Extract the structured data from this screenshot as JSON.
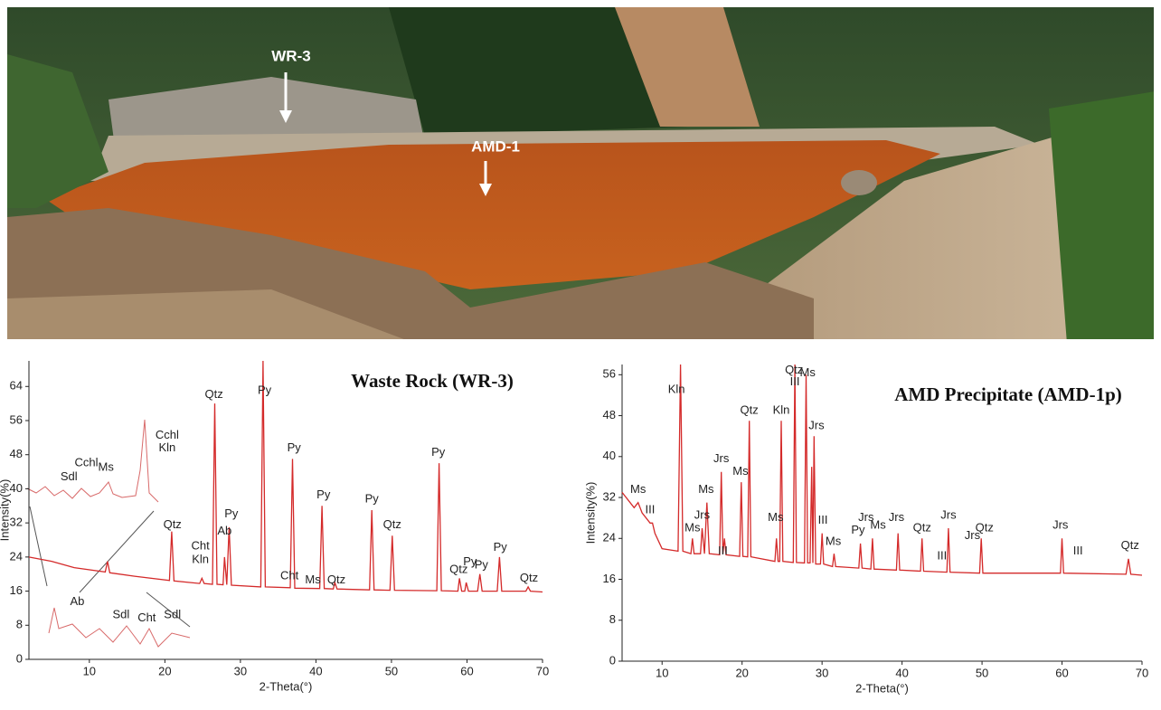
{
  "photo": {
    "labels": [
      "WR-3",
      "AMD-1"
    ]
  },
  "chart_data": [
    {
      "type": "line",
      "title": "Waste Rock (WR-3)",
      "x_label": "2-Theta(°)",
      "y_label": "Intensity(%)",
      "color": "#d42a2a",
      "xlim": [
        2,
        70
      ],
      "ylim": [
        0,
        70
      ],
      "xticks": [
        10,
        20,
        30,
        40,
        50,
        60,
        70
      ],
      "yticks": [
        0,
        8,
        16,
        24,
        32,
        40,
        48,
        56,
        64
      ],
      "x": [
        2,
        5,
        8,
        12.1,
        12.4,
        12.7,
        16,
        20.6,
        20.9,
        21.2,
        24.6,
        24.9,
        25.2,
        26.3,
        26.6,
        26.9,
        27.7,
        27.9,
        28.2,
        28.5,
        28.8,
        32.7,
        33.0,
        33.3,
        36.6,
        36.9,
        37.2,
        40.5,
        40.8,
        41.1,
        42.3,
        42.5,
        42.8,
        47.1,
        47.4,
        47.7,
        49.8,
        50.1,
        50.4,
        56.0,
        56.3,
        56.6,
        58.8,
        59.0,
        59.3,
        59.7,
        59.9,
        60.2,
        61.4,
        61.7,
        62.0,
        64.0,
        64.3,
        64.6,
        67.8,
        68.1,
        68.4,
        70
      ],
      "values": [
        24,
        23,
        21.5,
        20.5,
        23,
        20.3,
        19.5,
        18.5,
        30,
        18.4,
        17.8,
        19,
        17.8,
        17.6,
        60,
        17.6,
        17.5,
        24,
        17.5,
        31,
        17.4,
        17,
        70,
        17,
        16.8,
        47,
        16.7,
        16.6,
        36,
        16.6,
        16.5,
        18,
        16.5,
        16.3,
        35,
        16.3,
        16.2,
        29,
        16.2,
        16.1,
        46,
        16.1,
        16,
        19,
        16,
        16,
        18,
        16,
        16,
        20,
        16,
        16,
        24,
        16,
        16,
        17,
        16,
        15.8
      ],
      "annotations": [
        {
          "text": "Qtz",
          "x": 26.5,
          "y": 62
        },
        {
          "text": "Py",
          "x": 33.2,
          "y": 63
        },
        {
          "text": "Py",
          "x": 37.1,
          "y": 49.5
        },
        {
          "text": "Py",
          "x": 41,
          "y": 38.5
        },
        {
          "text": "Py",
          "x": 47.4,
          "y": 37.5
        },
        {
          "text": "Qtz",
          "x": 50.1,
          "y": 31.5
        },
        {
          "text": "Py",
          "x": 56.2,
          "y": 48.5
        },
        {
          "text": "Qtz",
          "x": 21,
          "y": 31.5
        },
        {
          "text": "Py",
          "x": 28.8,
          "y": 34
        },
        {
          "text": "Ab",
          "x": 27.9,
          "y": 30
        },
        {
          "text": "Cht",
          "x": 24.7,
          "y": 26.5
        },
        {
          "text": "Kln",
          "x": 24.7,
          "y": 23.3
        },
        {
          "text": "Cht",
          "x": 36.5,
          "y": 19.5
        },
        {
          "text": "Ms",
          "x": 39.6,
          "y": 18.5
        },
        {
          "text": "Qtz",
          "x": 42.7,
          "y": 18.5
        },
        {
          "text": "Qtz",
          "x": 58.9,
          "y": 21
        },
        {
          "text": "Py",
          "x": 60.4,
          "y": 22.8
        },
        {
          "text": "Py",
          "x": 61.9,
          "y": 22
        },
        {
          "text": "Py",
          "x": 64.4,
          "y": 26.2
        },
        {
          "text": "Qtz",
          "x": 68.2,
          "y": 19
        },
        {
          "text": "Cchl",
          "x": 20.3,
          "y": 52.5
        },
        {
          "text": "Kln",
          "x": 20.3,
          "y": 49.5
        },
        {
          "text": "Cchl",
          "x": 9.6,
          "y": 46
        },
        {
          "text": "Ms",
          "x": 12.2,
          "y": 45
        },
        {
          "text": "Sdl",
          "x": 7.3,
          "y": 42.7
        },
        {
          "text": "Ab",
          "x": 8.4,
          "y": 13.5
        },
        {
          "text": "Sdl",
          "x": 14.2,
          "y": 10.4
        },
        {
          "text": "Cht",
          "x": 17.6,
          "y": 9.6
        },
        {
          "text": "Sdl",
          "x": 21,
          "y": 10.4
        }
      ]
    },
    {
      "type": "line",
      "title": "AMD Precipitate (AMD-1p)",
      "x_label": "2-Theta(°)",
      "y_label": "Intensity(%)",
      "color": "#d42a2a",
      "xlim": [
        5,
        70
      ],
      "ylim": [
        0,
        58
      ],
      "xticks": [
        10,
        20,
        30,
        40,
        50,
        60,
        70
      ],
      "yticks": [
        0,
        8,
        16,
        24,
        32,
        40,
        48,
        56
      ],
      "x": [
        5,
        6.5,
        7,
        7.5,
        8.5,
        8.8,
        9.1,
        10,
        12.0,
        12.3,
        12.6,
        13.6,
        13.8,
        14.0,
        14.8,
        15.0,
        15.3,
        15.6,
        15.9,
        17.2,
        17.4,
        17.6,
        17.8,
        18.0,
        19.7,
        19.9,
        20.1,
        20.7,
        20.9,
        21.1,
        24.1,
        24.3,
        24.5,
        24.7,
        24.9,
        25.1,
        26.4,
        26.6,
        26.8,
        27.8,
        28.0,
        28.2,
        28.5,
        28.7,
        28.85,
        29.0,
        29.2,
        29.8,
        30.0,
        30.2,
        31.3,
        31.5,
        31.7,
        34.6,
        34.8,
        35.0,
        36.1,
        36.3,
        36.5,
        39.3,
        39.5,
        39.7,
        42.3,
        42.5,
        42.7,
        45.6,
        45.8,
        46.0,
        49.7,
        49.9,
        50.1,
        59.8,
        60.0,
        60.2,
        68.0,
        68.3,
        68.6,
        70
      ],
      "values": [
        33,
        30,
        31,
        29,
        27,
        27,
        25,
        22,
        21.5,
        58,
        21.5,
        21,
        24,
        21,
        21,
        26,
        21,
        31,
        21,
        20.8,
        37,
        21,
        24,
        20.8,
        20.5,
        35,
        20.5,
        20.4,
        47,
        20.4,
        19.5,
        24,
        19.5,
        19.5,
        47,
        19.5,
        19.3,
        58,
        19.3,
        19.2,
        56,
        19.2,
        19.2,
        38,
        19.2,
        44,
        19,
        19,
        25,
        19,
        18.5,
        21,
        18.5,
        18.2,
        23,
        18.2,
        18,
        24,
        18,
        17.8,
        25,
        17.8,
        17.6,
        24,
        17.6,
        17.4,
        26,
        17.4,
        17.2,
        24,
        17.2,
        17.2,
        24,
        17.2,
        17,
        20,
        17,
        16.8
      ],
      "annotations": [
        {
          "text": "Ms",
          "x": 7,
          "y": 33.5
        },
        {
          "text": "III",
          "x": 8.5,
          "y": 29.5
        },
        {
          "text": "Kln",
          "x": 11.8,
          "y": 53
        },
        {
          "text": "Ms",
          "x": 13.8,
          "y": 26
        },
        {
          "text": "Jrs",
          "x": 15,
          "y": 28.5
        },
        {
          "text": "Ms",
          "x": 15.5,
          "y": 33.5
        },
        {
          "text": "III",
          "x": 17.6,
          "y": 21.5
        },
        {
          "text": "Jrs",
          "x": 17.4,
          "y": 39.5
        },
        {
          "text": "Ms",
          "x": 19.8,
          "y": 37
        },
        {
          "text": "Qtz",
          "x": 20.9,
          "y": 49
        },
        {
          "text": "Ms",
          "x": 24.2,
          "y": 28
        },
        {
          "text": "Kln",
          "x": 24.9,
          "y": 49
        },
        {
          "text": "Qtz",
          "x": 26.5,
          "y": 56.8
        },
        {
          "text": "III",
          "x": 26.6,
          "y": 54.5
        },
        {
          "text": "Ms",
          "x": 28.2,
          "y": 56.3
        },
        {
          "text": "Jrs",
          "x": 29.3,
          "y": 46
        },
        {
          "text": "III",
          "x": 30.1,
          "y": 27.5
        },
        {
          "text": "Ms",
          "x": 31.4,
          "y": 23.3
        },
        {
          "text": "Py",
          "x": 34.5,
          "y": 25.5
        },
        {
          "text": "Jrs",
          "x": 35.5,
          "y": 28
        },
        {
          "text": "Ms",
          "x": 37,
          "y": 26.5
        },
        {
          "text": "Jrs",
          "x": 39.3,
          "y": 28
        },
        {
          "text": "Qtz",
          "x": 42.5,
          "y": 26
        },
        {
          "text": "III",
          "x": 45,
          "y": 20.5
        },
        {
          "text": "Jrs",
          "x": 45.8,
          "y": 28.5
        },
        {
          "text": "Jrs",
          "x": 48.8,
          "y": 24.5
        },
        {
          "text": "Qtz",
          "x": 50.3,
          "y": 26
        },
        {
          "text": "Jrs",
          "x": 59.8,
          "y": 26.5
        },
        {
          "text": "III",
          "x": 62,
          "y": 21.5
        },
        {
          "text": "Qtz",
          "x": 68.5,
          "y": 22.5
        }
      ]
    }
  ]
}
